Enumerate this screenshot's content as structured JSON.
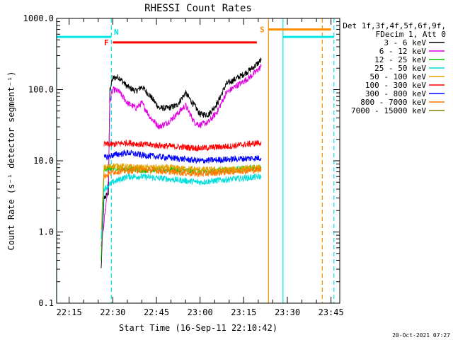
{
  "chart_data": {
    "type": "line",
    "title": "RHESSI Count Rates",
    "xlabel": "Start Time (16-Sep-11 22:10:42)",
    "ylabel": "Count Rate (s⁻¹ detector segment⁻¹)",
    "yscale": "log",
    "ylim": [
      0.1,
      1000
    ],
    "xlim": [
      "22:10:42",
      "23:48:00"
    ],
    "y_ticks": [
      "0.1",
      "1.0",
      "10.0",
      "100.0",
      "1000.0"
    ],
    "x_ticks": [
      "22:15",
      "22:30",
      "22:45",
      "23:00",
      "23:15",
      "23:30",
      "23:45"
    ],
    "grid": false,
    "legend_position": "right",
    "legend_header": [
      "Det 1f,3f,4f,5f,6f,9f,",
      "FDecim 1, Att 0"
    ],
    "timestamp": "20-Oct-2021 07:27",
    "series": [
      {
        "name": "3 - 6 keV",
        "color": "#000000",
        "x": [
          "22:26:00",
          "22:27:00",
          "22:28:30",
          "22:29:00",
          "22:30:00",
          "22:32:00",
          "22:35:00",
          "22:38:00",
          "22:40:00",
          "22:43:00",
          "22:46:00",
          "22:49:00",
          "22:52:00",
          "22:55:00",
          "22:58:00",
          "23:00:00",
          "23:03:00",
          "23:06:00",
          "23:09:00",
          "23:12:00",
          "23:15:00",
          "23:18:00",
          "23:21:00"
        ],
        "values": [
          0.3,
          3.0,
          3.5,
          100,
          145,
          150,
          110,
          95,
          110,
          80,
          55,
          55,
          60,
          90,
          60,
          45,
          45,
          65,
          120,
          140,
          165,
          200,
          260
        ]
      },
      {
        "name": "6 - 12 keV",
        "color": "#e000e0",
        "x": [
          "22:26:00",
          "22:28:30",
          "22:29:00",
          "22:30:00",
          "22:32:00",
          "22:35:00",
          "22:38:00",
          "22:40:00",
          "22:43:00",
          "22:46:00",
          "22:49:00",
          "22:52:00",
          "22:55:00",
          "22:58:00",
          "23:00:00",
          "23:03:00",
          "23:06:00",
          "23:09:00",
          "23:12:00",
          "23:15:00",
          "23:18:00",
          "23:21:00"
        ],
        "values": [
          0.6,
          5,
          70,
          100,
          95,
          65,
          55,
          65,
          40,
          30,
          35,
          45,
          60,
          35,
          32,
          35,
          50,
          90,
          110,
          130,
          160,
          210
        ]
      },
      {
        "name": "12 - 25 keV",
        "color": "#00c800",
        "x": [
          "22:26:00",
          "22:27:00",
          "22:30:00",
          "22:40:00",
          "22:50:00",
          "23:00:00",
          "23:10:00",
          "23:21:00"
        ],
        "values": [
          0.4,
          7.5,
          8,
          7.5,
          7.5,
          7,
          7.5,
          8
        ]
      },
      {
        "name": "25 - 50 keV",
        "color": "#00dcdc",
        "x": [
          "22:26:00",
          "22:27:00",
          "22:30:00",
          "22:35:00",
          "22:40:00",
          "22:50:00",
          "23:00:00",
          "23:10:00",
          "23:21:00"
        ],
        "values": [
          0.8,
          4,
          5,
          6,
          6,
          5.5,
          5,
          5.5,
          6
        ]
      },
      {
        "name": "50 - 100 keV",
        "color": "#e6a000",
        "x": [
          "22:26:00",
          "22:27:00",
          "22:30:00",
          "22:40:00",
          "22:50:00",
          "23:00:00",
          "23:10:00",
          "23:21:00"
        ],
        "values": [
          1,
          8,
          8.5,
          8,
          8,
          7.5,
          7.5,
          8
        ]
      },
      {
        "name": "100 - 300 keV",
        "color": "#ff0000",
        "x": [
          "22:27:00",
          "22:30:00",
          "22:35:00",
          "22:40:00",
          "22:50:00",
          "23:00:00",
          "23:10:00",
          "23:21:00"
        ],
        "values": [
          17,
          17,
          18,
          17,
          16,
          15,
          16,
          18
        ]
      },
      {
        "name": "300 - 800 keV",
        "color": "#0000ff",
        "x": [
          "22:27:00",
          "22:30:00",
          "22:35:00",
          "22:40:00",
          "22:50:00",
          "23:00:00",
          "23:10:00",
          "23:21:00"
        ],
        "values": [
          11,
          12,
          13,
          12,
          11,
          10,
          10.5,
          11
        ]
      },
      {
        "name": "800 - 7000 keV",
        "color": "#ff7800",
        "x": [
          "22:27:00",
          "22:30:00",
          "22:40:00",
          "22:50:00",
          "23:00:00",
          "23:10:00",
          "23:21:00"
        ],
        "values": [
          6,
          7,
          7.5,
          7,
          6.5,
          7,
          7.5
        ]
      },
      {
        "name": "7000 - 15000 keV",
        "color": "#808000",
        "x": [],
        "values": []
      }
    ],
    "flag_bars": [
      {
        "label": "N",
        "color": "#00e6e6",
        "level": 550,
        "segments": [
          [
            "22:10:42",
            "22:29:30"
          ],
          [
            "23:28:30",
            "23:46:00"
          ]
        ]
      },
      {
        "label": "F",
        "color": "#ff0000",
        "level": 460,
        "segments": [
          [
            "22:30:00",
            "23:19:30"
          ]
        ]
      },
      {
        "label": "S",
        "color": "#ff8c00",
        "level": 700,
        "segments": [
          [
            "23:23:30",
            "23:45:00"
          ]
        ]
      }
    ],
    "vertical_markers": [
      {
        "time": "22:10:42",
        "color": "#00e6e6",
        "style": "solid"
      },
      {
        "time": "22:29:30",
        "color": "#00e6e6",
        "style": "dashed"
      },
      {
        "time": "23:23:30",
        "color": "#ff8c00",
        "style": "solid"
      },
      {
        "time": "23:28:30",
        "color": "#00e6e6",
        "style": "solid"
      },
      {
        "time": "23:42:00",
        "color": "#ff8c00",
        "style": "dashed"
      },
      {
        "time": "23:46:00",
        "color": "#00e6e6",
        "style": "dashed"
      }
    ]
  }
}
